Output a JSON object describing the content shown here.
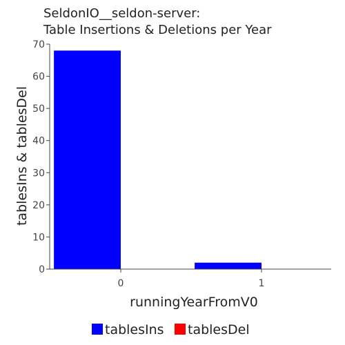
{
  "chart_data": {
    "type": "bar",
    "title_line1": "SeldonIO__seldon-server:",
    "title_line2": "Table Insertions & Deletions per Year",
    "xlabel": "runningYearFromV0",
    "ylabel": "tablesIns & tablesDel",
    "categories": [
      "0",
      "1"
    ],
    "series": [
      {
        "name": "tablesIns",
        "color": "#0000ff",
        "values": [
          68,
          2
        ]
      },
      {
        "name": "tablesDel",
        "color": "#ff0000",
        "values": [
          0,
          0
        ]
      }
    ],
    "ylim": [
      0,
      70
    ],
    "yticks": [
      "0",
      "10",
      "20",
      "30",
      "40",
      "50",
      "60",
      "70"
    ],
    "grid": false,
    "legend_position": "bottom"
  }
}
